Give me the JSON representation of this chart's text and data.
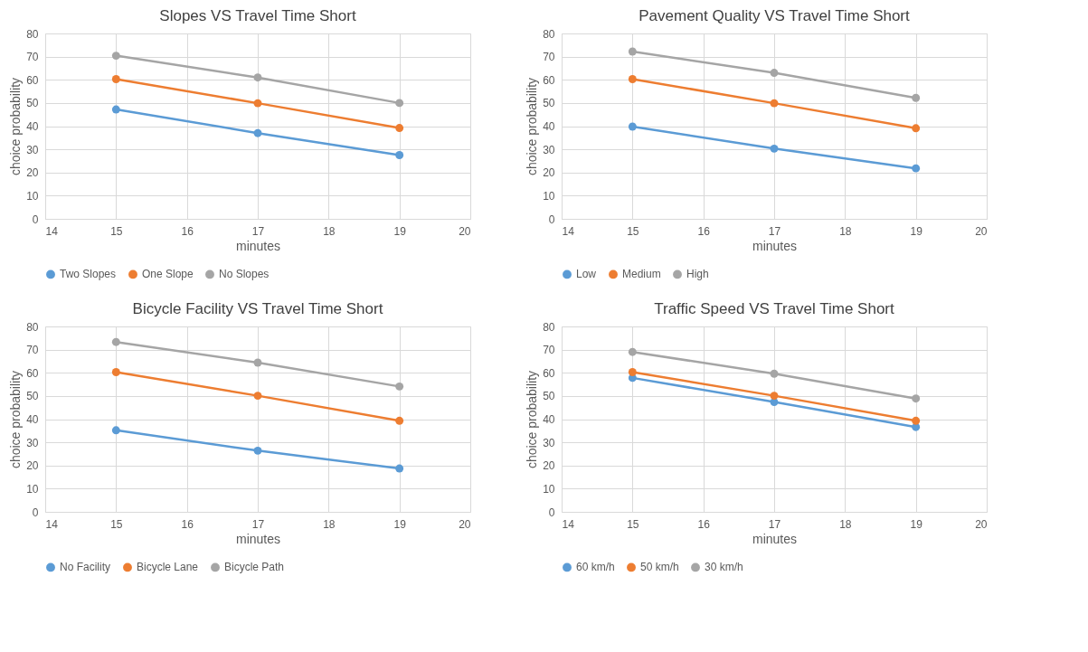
{
  "chart_data": [
    {
      "type": "line",
      "title": "Slopes VS Travel Time Short",
      "xlabel": "minutes",
      "ylabel": "choice probability",
      "x": [
        15,
        17,
        19
      ],
      "xlim": [
        14,
        20
      ],
      "xticks": [
        14,
        15,
        16,
        17,
        18,
        19,
        20
      ],
      "ylim": [
        0,
        80
      ],
      "yticks": [
        0,
        10,
        20,
        30,
        40,
        50,
        60,
        70,
        80
      ],
      "grid": true,
      "legend": "bottom",
      "marker": "circle",
      "line_style": "solid",
      "series": [
        {
          "name": "Two Slopes",
          "color": "#5b9bd5",
          "values": [
            47.2,
            37,
            27.5
          ]
        },
        {
          "name": "One Slope",
          "color": "#ed7d31",
          "values": [
            60.3,
            49.9,
            39.2
          ]
        },
        {
          "name": "No Slopes",
          "color": "#a5a5a5",
          "values": [
            70.4,
            61,
            50
          ]
        }
      ]
    },
    {
      "type": "line",
      "title": "Pavement Quality VS Travel Time Short",
      "xlabel": "minutes",
      "ylabel": "choice probability",
      "x": [
        15,
        17,
        19
      ],
      "xlim": [
        14,
        20
      ],
      "xticks": [
        14,
        15,
        16,
        17,
        18,
        19,
        20
      ],
      "ylim": [
        0,
        80
      ],
      "yticks": [
        0,
        10,
        20,
        30,
        40,
        50,
        60,
        70,
        80
      ],
      "grid": true,
      "legend": "bottom",
      "marker": "circle",
      "line_style": "solid",
      "series": [
        {
          "name": "Low",
          "color": "#5b9bd5",
          "values": [
            39.8,
            30.3,
            21.8
          ]
        },
        {
          "name": "Medium",
          "color": "#ed7d31",
          "values": [
            60.3,
            49.9,
            39.1
          ]
        },
        {
          "name": "High",
          "color": "#a5a5a5",
          "values": [
            72.2,
            63,
            52.2
          ]
        }
      ]
    },
    {
      "type": "line",
      "title": "Bicycle Facility VS Travel Time Short",
      "xlabel": "minutes",
      "ylabel": "choice probability",
      "x": [
        15,
        17,
        19
      ],
      "xlim": [
        14,
        20
      ],
      "xticks": [
        14,
        15,
        16,
        17,
        18,
        19,
        20
      ],
      "ylim": [
        0,
        80
      ],
      "yticks": [
        0,
        10,
        20,
        30,
        40,
        50,
        60,
        70,
        80
      ],
      "grid": true,
      "legend": "bottom",
      "marker": "circle",
      "line_style": "solid",
      "series": [
        {
          "name": "No Facility",
          "color": "#5b9bd5",
          "values": [
            35.2,
            26.4,
            18.7
          ]
        },
        {
          "name": "Bicycle Lane",
          "color": "#ed7d31",
          "values": [
            60.3,
            50.1,
            39.3
          ]
        },
        {
          "name": "Bicycle Path",
          "color": "#a5a5a5",
          "values": [
            73.3,
            64.4,
            54.1
          ]
        }
      ]
    },
    {
      "type": "line",
      "title": "Traffic Speed VS Travel Time Short",
      "xlabel": "minutes",
      "ylabel": "choice probability",
      "x": [
        15,
        17,
        19
      ],
      "xlim": [
        14,
        20
      ],
      "xticks": [
        14,
        15,
        16,
        17,
        18,
        19,
        20
      ],
      "ylim": [
        0,
        80
      ],
      "yticks": [
        0,
        10,
        20,
        30,
        40,
        50,
        60,
        70,
        80
      ],
      "grid": true,
      "legend": "bottom",
      "marker": "circle",
      "line_style": "solid",
      "series": [
        {
          "name": "60 km/h",
          "color": "#5b9bd5",
          "values": [
            57.8,
            47.4,
            36.6
          ]
        },
        {
          "name": "50 km/h",
          "color": "#ed7d31",
          "values": [
            60.3,
            50.1,
            39.3
          ]
        },
        {
          "name": "30 km/h",
          "color": "#a5a5a5",
          "values": [
            69,
            59.6,
            48.9
          ]
        }
      ]
    }
  ]
}
